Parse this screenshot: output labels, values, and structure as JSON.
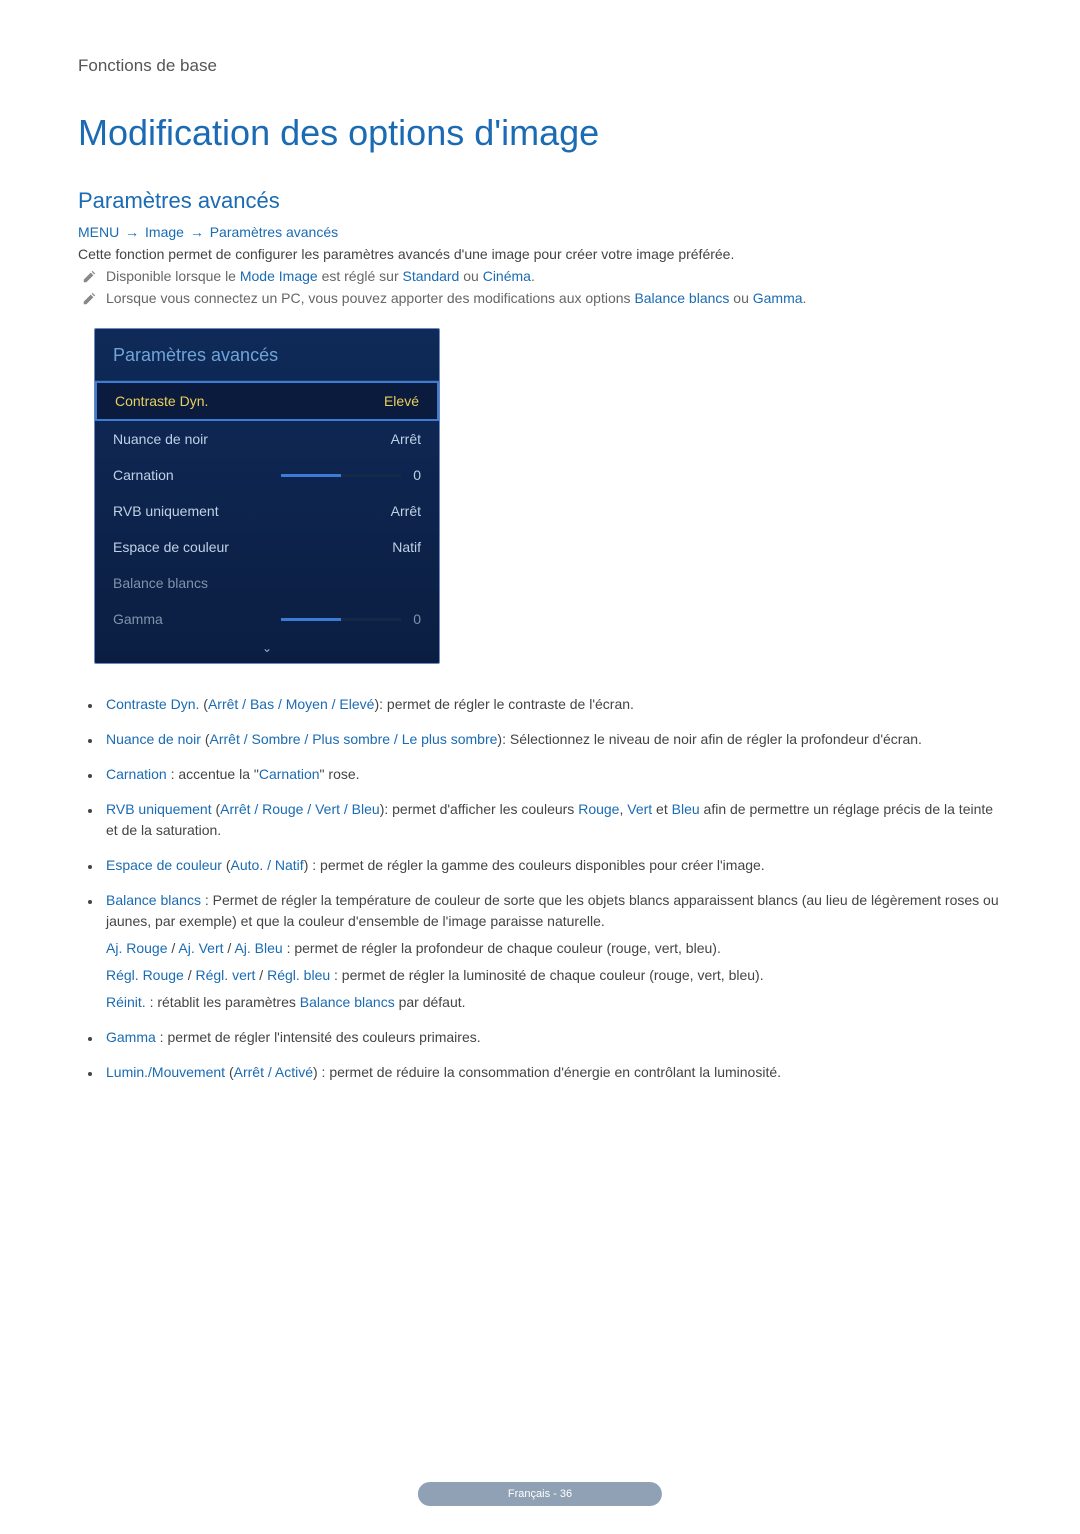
{
  "chapter": "Fonctions de base",
  "title": "Modification des options d'image",
  "subtitle": "Paramètres avancés",
  "breadcrumb": {
    "a": "MENU",
    "b": "Image",
    "c": "Paramètres avancés",
    "arrow": "→"
  },
  "intro": "Cette fonction permet de configurer les paramètres avancés d'une image pour créer votre image préférée.",
  "note1": {
    "pre": "Disponible lorsque le ",
    "t1": "Mode Image",
    "mid": " est réglé sur ",
    "t2": "Standard",
    "or": " ou ",
    "t3": "Cinéma",
    "post": "."
  },
  "note2": {
    "pre": "Lorsque vous connectez un PC, vous pouvez apporter des modifications aux options ",
    "t1": "Balance blancs",
    "or": " ou ",
    "t2": "Gamma",
    "post": "."
  },
  "panel": {
    "title": "Paramètres avancés",
    "rows": [
      {
        "label": "Contraste Dyn.",
        "value": "Elevé",
        "type": "text",
        "style": "selected"
      },
      {
        "label": "Nuance de noir",
        "value": "Arrêt",
        "type": "text",
        "style": "after"
      },
      {
        "label": "Carnation",
        "value": "0",
        "type": "slider",
        "fill": 50,
        "style": "after"
      },
      {
        "label": "RVB uniquement",
        "value": "Arrêt",
        "type": "text",
        "style": "after"
      },
      {
        "label": "Espace de couleur",
        "value": "Natif",
        "type": "text",
        "style": "after"
      },
      {
        "label": "Balance blancs",
        "value": "",
        "type": "text",
        "style": "muted"
      },
      {
        "label": "Gamma",
        "value": "0",
        "type": "slider",
        "fill": 50,
        "style": "muted"
      }
    ],
    "chevron": "⌄"
  },
  "bullets": {
    "b1": {
      "t": "Contraste Dyn.",
      "opts": "Arrêt / Bas / Moyen / Elevé",
      "desc": ": permet de régler le contraste de l'écran."
    },
    "b2": {
      "t": "Nuance de noir",
      "opts": "Arrêt / Sombre / Plus sombre / Le plus sombre",
      "desc": ": Sélectionnez le niveau de noir afin de régler la profondeur d'écran."
    },
    "b3": {
      "t": "Carnation",
      "pre": " : accentue la \"",
      "t2": "Carnation",
      "post": "\" rose."
    },
    "b4": {
      "t": "RVB uniquement",
      "opts": "Arrêt / Rouge / Vert / Bleu",
      "desc1": ": permet d'afficher les couleurs ",
      "c1": "Rouge",
      "c2": "Vert",
      "c3": "Bleu",
      "desc2": " afin de permettre un réglage précis de la teinte et de la saturation."
    },
    "b5": {
      "t": "Espace de couleur",
      "opts": "Auto. / Natif",
      "desc": " : permet de régler la gamme des couleurs disponibles pour créer l'image."
    },
    "b6": {
      "t": "Balance blancs",
      "desc": " : Permet de régler la température de couleur de sorte que les objets blancs apparaissent blancs (au lieu de légèrement roses ou jaunes, par exemple) et que la couleur d'ensemble de l'image paraisse naturelle.",
      "l1a": "Aj. Rouge",
      "l1b": "Aj. Vert",
      "l1c": "Aj. Bleu",
      "l1desc": " : permet de régler la profondeur de chaque couleur (rouge, vert, bleu).",
      "l2a": "Régl. Rouge",
      "l2b": "Régl. vert",
      "l2c": "Régl. bleu",
      "l2desc": " : permet de régler la luminosité de chaque couleur (rouge, vert, bleu).",
      "l3a": "Réinit.",
      "l3mid": " : rétablit les paramètres ",
      "l3b": "Balance blancs",
      "l3post": " par défaut."
    },
    "b7": {
      "t": "Gamma",
      "desc": " : permet de régler l'intensité des couleurs primaires."
    },
    "b8": {
      "t": "Lumin./Mouvement",
      "opts": "Arrêt / Activé",
      "desc": " : permet de réduire la consommation d'énergie en contrôlant la luminosité."
    }
  },
  "colors": {
    "link": "#1a6bb3",
    "panel_bg_top": "#0f2a58",
    "panel_bg_bottom": "#0b1e42",
    "selected_border": "#3d7bd4",
    "gold": "#e8d05a",
    "lightblue": "#bed1e5",
    "muted": "#7f93aa"
  },
  "pager": "Français - 36"
}
